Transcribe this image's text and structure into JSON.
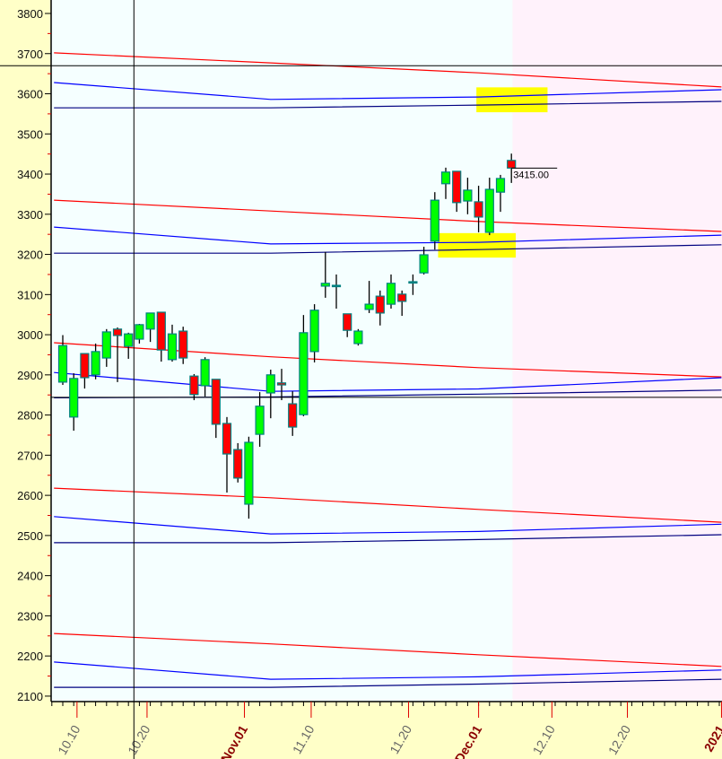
{
  "chart_data": {
    "type": "candlestick",
    "title": "",
    "xlabel": "",
    "ylabel": "",
    "ylim": [
      2100,
      3800
    ],
    "yticks": [
      2100,
      2200,
      2300,
      2400,
      2500,
      2600,
      2700,
      2800,
      2900,
      3000,
      3100,
      3200,
      3300,
      3400,
      3500,
      3600,
      3700,
      3800
    ],
    "xticks": [
      {
        "label": "10.10",
        "index": 1.3,
        "major": false
      },
      {
        "label": "10.20",
        "index": 7.7,
        "major": false
      },
      {
        "label": "Nov.01",
        "index": 16.6,
        "major": true
      },
      {
        "label": "11.10",
        "index": 22.7,
        "major": false
      },
      {
        "label": "11.20",
        "index": 31.6,
        "major": false
      },
      {
        "label": "Dec.01",
        "index": 38.0,
        "major": true
      },
      {
        "label": "12.10",
        "index": 44.7,
        "major": false
      },
      {
        "label": "12.20",
        "index": 51.6,
        "major": false
      },
      {
        "label": "2021",
        "index": 60.2,
        "major": true
      }
    ],
    "candles": [
      [
        2882,
        2999,
        2875,
        2973
      ],
      [
        2795,
        2904,
        2761,
        2891
      ],
      [
        2953,
        2953,
        2866,
        2893
      ],
      [
        2900,
        2978,
        2889,
        2958
      ],
      [
        2942,
        3014,
        2920,
        3007
      ],
      [
        3014,
        3018,
        2882,
        2998
      ],
      [
        2971,
        3005,
        2940,
        3002
      ],
      [
        2989,
        3027,
        2978,
        3025
      ],
      [
        3014,
        3054,
        2982,
        3054
      ],
      [
        3056,
        3056,
        2933,
        2962
      ],
      [
        2938,
        3025,
        2933,
        3002
      ],
      [
        3009,
        3020,
        2927,
        2942
      ],
      [
        2897,
        2902,
        2837,
        2851
      ],
      [
        2873,
        2944,
        2846,
        2938
      ],
      [
        2889,
        2889,
        2743,
        2777
      ],
      [
        2779,
        2795,
        2607,
        2703
      ],
      [
        2714,
        2730,
        2632,
        2643
      ],
      [
        2578,
        2746,
        2542,
        2732
      ],
      [
        2752,
        2857,
        2721,
        2822
      ],
      [
        2855,
        2913,
        2792,
        2900
      ],
      [
        2880,
        2915,
        2837,
        2875
      ],
      [
        2828,
        2859,
        2748,
        2770
      ],
      [
        2801,
        3049,
        2797,
        3005
      ],
      [
        2958,
        3076,
        2931,
        3061
      ],
      [
        3121,
        3206,
        3092,
        3128
      ],
      [
        3123,
        3150,
        3065,
        3123
      ],
      [
        3052,
        3052,
        2994,
        3011
      ],
      [
        2978,
        3014,
        2973,
        3009
      ],
      [
        3063,
        3134,
        3054,
        3076
      ],
      [
        3096,
        3110,
        3023,
        3054
      ],
      [
        3076,
        3150,
        3065,
        3128
      ],
      [
        3101,
        3110,
        3047,
        3083
      ],
      [
        3132,
        3150,
        3099,
        3132
      ],
      [
        3154,
        3219,
        3150,
        3199
      ],
      [
        3233,
        3355,
        3212,
        3335
      ],
      [
        3376,
        3416,
        3338,
        3405
      ],
      [
        3407,
        3407,
        3306,
        3329
      ],
      [
        3333,
        3391,
        3300,
        3360
      ],
      [
        3331,
        3371,
        3255,
        3293
      ],
      [
        3255,
        3391,
        3248,
        3362
      ],
      [
        3355,
        3398,
        3306,
        3389
      ],
      [
        3434,
        3451,
        3378,
        3415
      ]
    ],
    "candle_fields": [
      "open",
      "high",
      "low",
      "close"
    ],
    "last_price": "3415.00",
    "last_price_value": 3415,
    "forecast_start_index": 41.1,
    "crosshair": {
      "index": 6.5,
      "price": 3670
    },
    "horizontal_lines": [
      2844
    ],
    "highlights": [
      {
        "index_range": [
          37.8,
          44.3
        ],
        "price_range": [
          3554,
          3616
        ]
      },
      {
        "index_range": [
          34.3,
          41.4
        ],
        "price_range": [
          3192,
          3253
        ]
      }
    ],
    "line_index_points": [
      -0.8,
      19,
      38,
      60.2
    ],
    "lines": [
      {
        "color": "#ff0000",
        "values": [
          3702,
          3677,
          3652,
          3617
        ]
      },
      {
        "color": "#0000ff",
        "values": [
          3628,
          3586,
          3592,
          3610
        ]
      },
      {
        "color": "#000080",
        "values": [
          3565,
          3565,
          3572,
          3581
        ]
      },
      {
        "color": "#ff0000",
        "values": [
          3335,
          3308,
          3282,
          3257
        ]
      },
      {
        "color": "#0000ff",
        "values": [
          3268,
          3226,
          3230,
          3248
        ]
      },
      {
        "color": "#000080",
        "values": [
          3203,
          3203,
          3212,
          3224
        ]
      },
      {
        "color": "#ff0000",
        "values": [
          2980,
          2945,
          2918,
          2895
        ]
      },
      {
        "color": "#0000ff",
        "values": [
          2906,
          2859,
          2865,
          2893
        ]
      },
      {
        "color": "#000080",
        "values": [
          2843,
          2845,
          2852,
          2862
        ]
      },
      {
        "color": "#ff0000",
        "values": [
          2618,
          2594,
          2565,
          2533
        ]
      },
      {
        "color": "#0000ff",
        "values": [
          2547,
          2504,
          2510,
          2528
        ]
      },
      {
        "color": "#000080",
        "values": [
          2482,
          2482,
          2490,
          2502
        ]
      },
      {
        "color": "#ff0000",
        "values": [
          2256,
          2230,
          2203,
          2174
        ]
      },
      {
        "color": "#0000ff",
        "values": [
          2185,
          2142,
          2148,
          2165
        ]
      },
      {
        "color": "#000080",
        "values": [
          2122,
          2122,
          2130,
          2142
        ]
      }
    ],
    "colors": {
      "up": "#00ff00",
      "down": "#ff0000",
      "body_border": "#008080",
      "plot_bg": "#f5ffff",
      "forecast_bg": "#fff2fb",
      "axis_bg": "#ffffc8",
      "highlight": "#ffff00"
    }
  }
}
